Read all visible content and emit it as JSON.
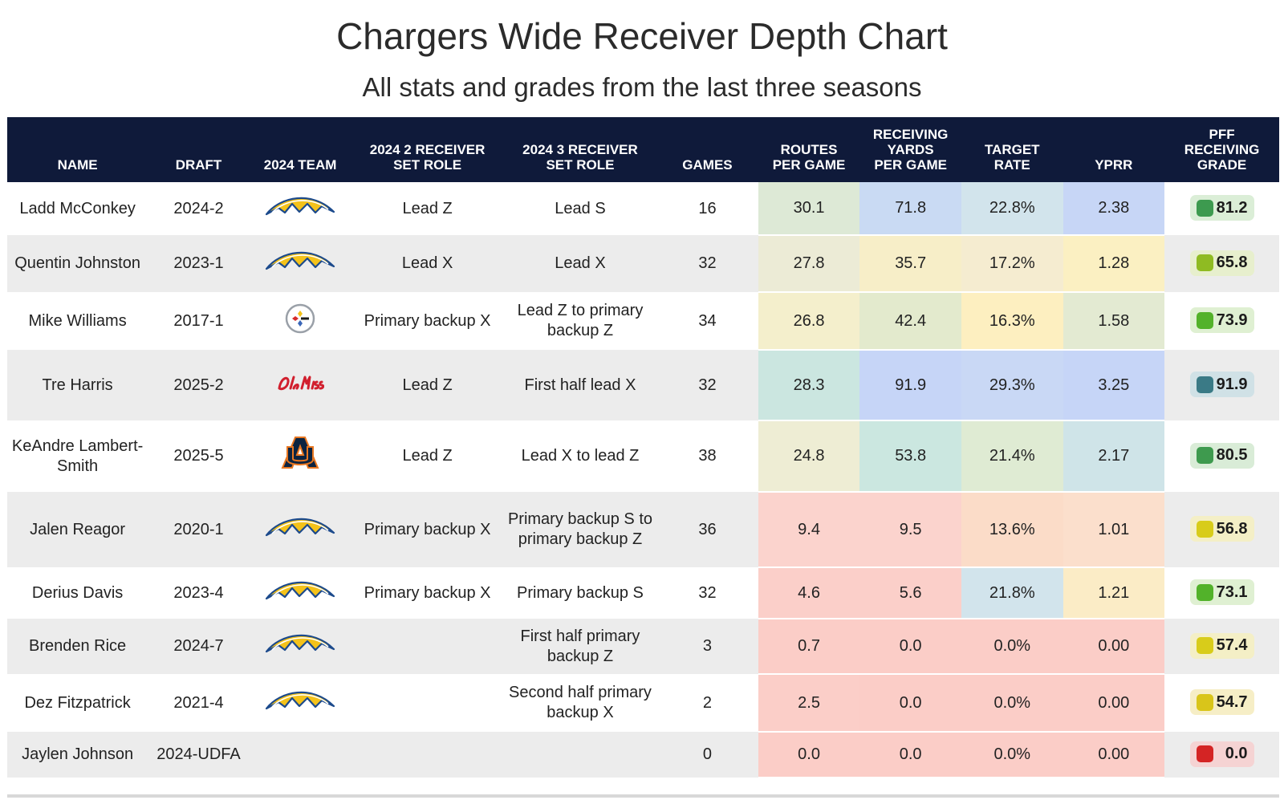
{
  "title": "Chargers Wide Receiver Depth Chart",
  "subtitle": "All stats and grades from the last three seasons",
  "colors": {
    "header_bg": "#0f1a3a",
    "row_alt": "#ececec"
  },
  "chart_data": {
    "type": "table",
    "columns": [
      "NAME",
      "DRAFT",
      "2024 TEAM",
      "2024 2 RECEIVER SET ROLE",
      "2024 3 RECEIVER SET ROLE",
      "GAMES",
      "ROUTES PER GAME",
      "RECEIVING YARDS PER GAME",
      "TARGET RATE",
      "YPRR",
      "PFF RECEIVING GRADE"
    ],
    "rows": [
      {
        "name": "Ladd McConkey",
        "draft": "2024-2",
        "team": "chargers-logo",
        "role2": "Lead Z",
        "role3": "Lead S",
        "games": "16",
        "routes": "30.1",
        "yards": "71.8",
        "target": "22.8%",
        "yprr": "2.38",
        "grade": "81.2",
        "colors": {
          "routes": "#dde9d6",
          "yards": "#c9daf3",
          "target": "#d2e4ec",
          "yprr": "#c7d6f6"
        },
        "grade_color": "#3d9a4f",
        "grade_bg": "#dbeed7"
      },
      {
        "name": "Quentin Johnston",
        "draft": "2023-1",
        "team": "chargers-logo",
        "role2": "Lead X",
        "role3": "Lead X",
        "games": "32",
        "routes": "27.8",
        "yards": "35.7",
        "target": "17.2%",
        "yprr": "1.28",
        "grade": "65.8",
        "colors": {
          "routes": "#ecebd6",
          "yards": "#f7eec8",
          "target": "#f5ecd0",
          "yprr": "#fbf0c2"
        },
        "grade_color": "#8fbb22",
        "grade_bg": "#e7efcd"
      },
      {
        "name": "Mike Williams",
        "draft": "2017-1",
        "team": "steelers-logo",
        "role2": "Primary backup X",
        "role3": "Lead Z to primary backup Z",
        "games": "34",
        "routes": "26.8",
        "yards": "42.4",
        "target": "16.3%",
        "yprr": "1.58",
        "grade": "73.9",
        "colors": {
          "routes": "#f4efcc",
          "yards": "#e3eacd",
          "target": "#fdefc0",
          "yprr": "#e3ead2"
        },
        "grade_color": "#53b22a",
        "grade_bg": "#dff0d2"
      },
      {
        "name": "Tre Harris",
        "draft": "2025-2",
        "team": "ole-miss-logo",
        "role2": "Lead Z",
        "role3": "First half lead X",
        "games": "32",
        "routes": "28.3",
        "yards": "91.9",
        "target": "29.3%",
        "yprr": "3.25",
        "grade": "91.9",
        "colors": {
          "routes": "#cbe6e0",
          "yards": "#c6d5f7",
          "target": "#c9d8f5",
          "yprr": "#c6d5f7"
        },
        "grade_color": "#3a7a86",
        "grade_bg": "#d0e1e6"
      },
      {
        "name": "KeAndre Lambert-Smith",
        "draft": "2025-5",
        "team": "auburn-logo",
        "role2": "Lead Z",
        "role3": "Lead X to lead Z",
        "games": "38",
        "routes": "24.8",
        "yards": "53.8",
        "target": "21.4%",
        "yprr": "2.17",
        "grade": "80.5",
        "colors": {
          "routes": "#eeedd4",
          "yards": "#cbe7e0",
          "target": "#dfebd3",
          "yprr": "#cfe4e8"
        },
        "grade_color": "#3e9a4e",
        "grade_bg": "#d9ecd7"
      },
      {
        "name": "Jalen Reagor",
        "draft": "2020-1",
        "team": "chargers-logo",
        "role2": "Primary backup X",
        "role3": "Primary backup S to primary backup Z",
        "games": "36",
        "routes": "9.4",
        "yards": "9.5",
        "target": "13.6%",
        "yprr": "1.01",
        "grade": "56.8",
        "colors": {
          "routes": "#fbd3cd",
          "yards": "#fbd3cd",
          "target": "#fbdcc8",
          "yprr": "#fbdfcc"
        },
        "grade_color": "#d8cc1a",
        "grade_bg": "#f4efc6"
      },
      {
        "name": "Derius Davis",
        "draft": "2023-4",
        "team": "chargers-logo",
        "role2": "Primary backup X",
        "role3": "Primary backup S",
        "games": "32",
        "routes": "4.6",
        "yards": "5.6",
        "target": "21.8%",
        "yprr": "1.21",
        "grade": "73.1",
        "colors": {
          "routes": "#fbcfc9",
          "yards": "#fbcfc9",
          "target": "#d2e4ec",
          "yprr": "#fbecc6"
        },
        "grade_color": "#52b22a",
        "grade_bg": "#dff0d2"
      },
      {
        "name": "Brenden Rice",
        "draft": "2024-7",
        "team": "chargers-logo",
        "role2": "",
        "role3": "First half primary backup Z",
        "games": "3",
        "routes": "0.7",
        "yards": "0.0",
        "target": "0.0%",
        "yprr": "0.00",
        "grade": "57.4",
        "colors": {
          "routes": "#fbcdc7",
          "yards": "#fbcdc7",
          "target": "#fbcdc7",
          "yprr": "#fbcdc7"
        },
        "grade_color": "#d8cc1a",
        "grade_bg": "#f4efc6"
      },
      {
        "name": "Dez Fitzpatrick",
        "draft": "2021-4",
        "team": "chargers-logo",
        "role2": "",
        "role3": "Second half primary backup X",
        "games": "2",
        "routes": "2.5",
        "yards": "0.0",
        "target": "0.0%",
        "yprr": "0.00",
        "grade": "54.7",
        "colors": {
          "routes": "#fbcec8",
          "yards": "#fbcdc7",
          "target": "#fbcdc7",
          "yprr": "#fbcdc7"
        },
        "grade_color": "#d9c51a",
        "grade_bg": "#f6eec6"
      },
      {
        "name": "Jaylen Johnson",
        "draft": "2024-UDFA",
        "team": "",
        "role2": "",
        "role3": "",
        "games": "0",
        "routes": "0.0",
        "yards": "0.0",
        "target": "0.0%",
        "yprr": "0.00",
        "grade": "0.0",
        "colors": {
          "routes": "#fbcdc7",
          "yards": "#fbcdc7",
          "target": "#fbcdc7",
          "yprr": "#fbcdc7"
        },
        "grade_color": "#d42424",
        "grade_bg": "#f5d3d3"
      }
    ]
  }
}
